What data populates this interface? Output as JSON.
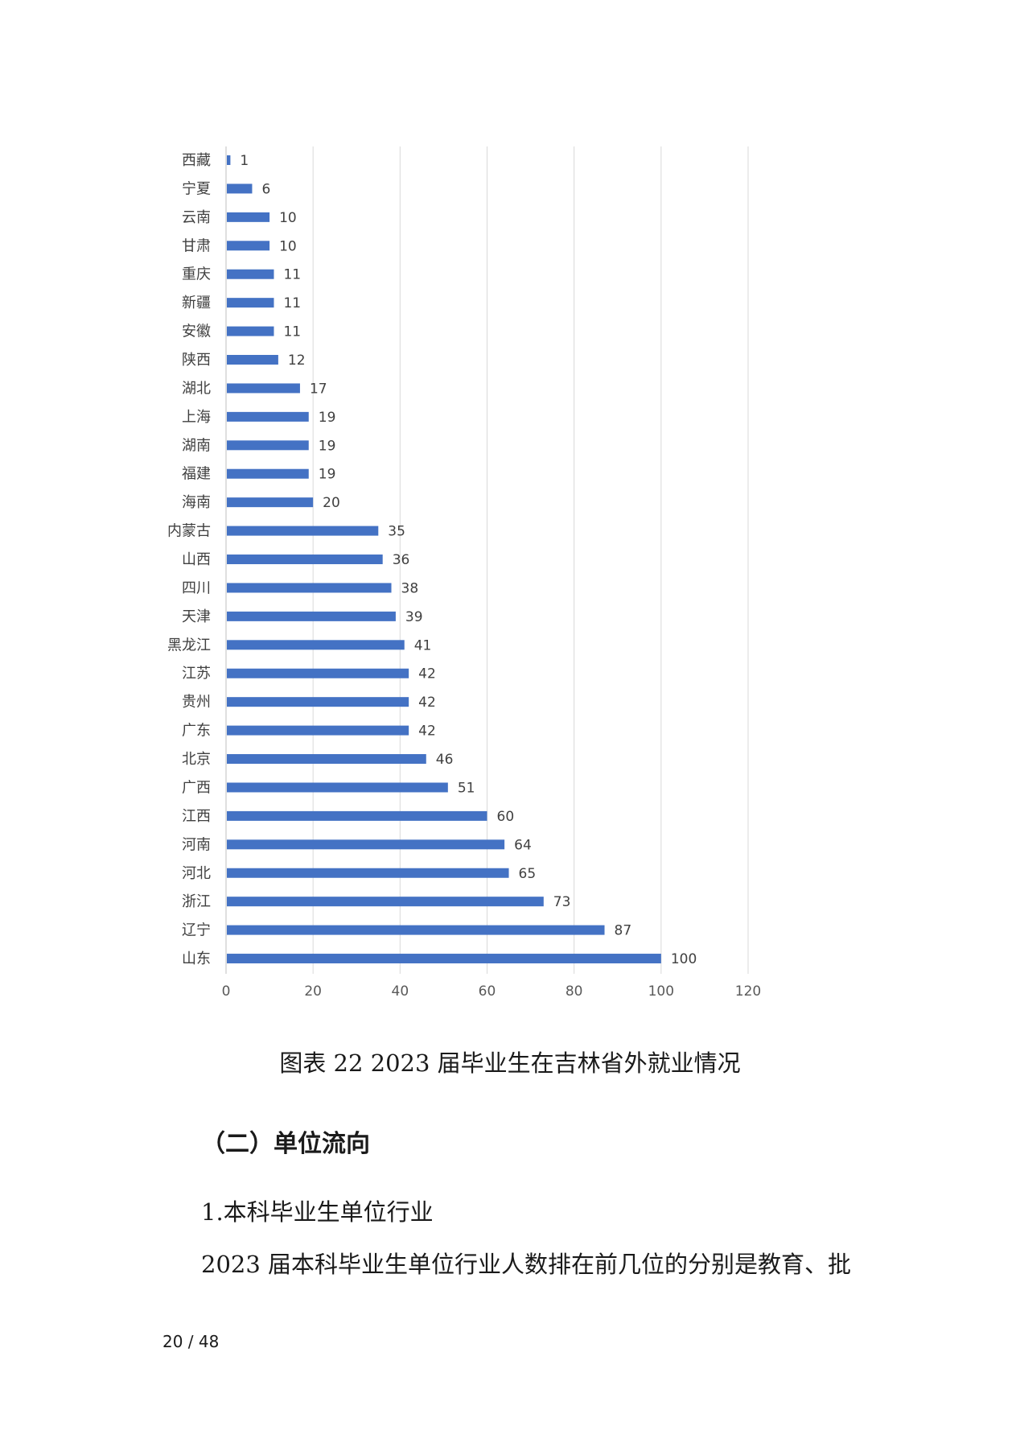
{
  "chart_data": {
    "type": "bar",
    "orientation": "horizontal",
    "categories": [
      "西藏",
      "宁夏",
      "云南",
      "甘肃",
      "重庆",
      "新疆",
      "安徽",
      "陕西",
      "湖北",
      "上海",
      "湖南",
      "福建",
      "海南",
      "内蒙古",
      "山西",
      "四川",
      "天津",
      "黑龙江",
      "江苏",
      "贵州",
      "广东",
      "北京",
      "广西",
      "江西",
      "河南",
      "河北",
      "浙江",
      "辽宁",
      "山东"
    ],
    "values": [
      1,
      6,
      10,
      10,
      11,
      11,
      11,
      12,
      17,
      19,
      19,
      19,
      20,
      35,
      36,
      38,
      39,
      41,
      42,
      42,
      42,
      46,
      51,
      60,
      64,
      65,
      73,
      87,
      100
    ],
    "xlim": [
      0,
      120
    ],
    "xticks": [
      0,
      20,
      40,
      60,
      80,
      100,
      120
    ],
    "grid": true,
    "data_labels": true,
    "bar_color": "#4472C4"
  },
  "caption": "图表 22 2023 届毕业生在吉林省外就业情况",
  "section_heading": "（二）单位流向",
  "sub_heading": "1.本科毕业生单位行业",
  "body_text": "2023 届本科毕业生单位行业人数排在前几位的分别是教育、批",
  "page_number": "20 / 48"
}
